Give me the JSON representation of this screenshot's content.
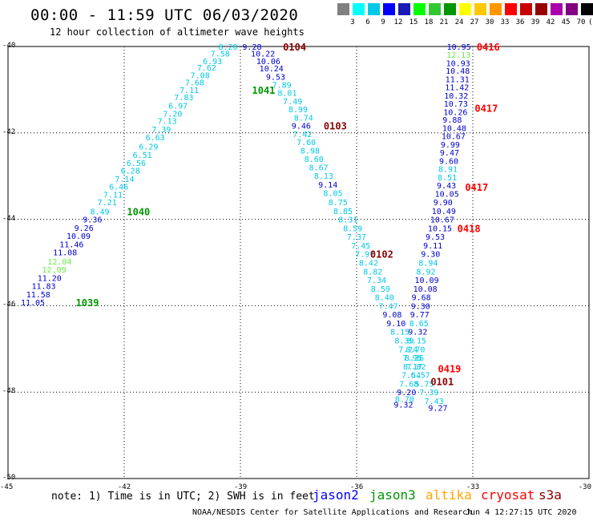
{
  "header": {
    "title": "00:00 - 11:59 UTC 06/03/2020",
    "subtitle": "12 hour collection of altimeter wave heights"
  },
  "scale": {
    "labels": [
      "3",
      "6",
      "9",
      "12",
      "15",
      "18",
      "21",
      "24",
      "27",
      "30",
      "33",
      "36",
      "39",
      "42",
      "45",
      "70",
      "(ft)"
    ],
    "colors": [
      "#808080",
      "#00ffff",
      "#00c8e6",
      "#0000ff",
      "#1a1ab4",
      "#00ff00",
      "#32c832",
      "#009600",
      "#ffff00",
      "#ffc800",
      "#ff9600",
      "#ff0000",
      "#c80000",
      "#960000",
      "#aa00aa",
      "#800080",
      "#000000"
    ]
  },
  "axes": {
    "y_labels": [
      "-40",
      "-42",
      "-44",
      "-46",
      "-48",
      "-50"
    ],
    "x_labels": [
      "-45",
      "-42",
      "-39",
      "-36",
      "-33",
      "-30"
    ]
  },
  "footer": {
    "note": "note: 1) Time is in UTC; 2) SWH is in feet",
    "legend": [
      {
        "name": "jason2",
        "color": "#0000ff"
      },
      {
        "name": "jason3",
        "color": "#009600"
      },
      {
        "name": "altika",
        "color": "#ffa500"
      },
      {
        "name": "cryosat",
        "color": "#ff0000"
      },
      {
        "name": "s3a",
        "color": "#8b0000"
      }
    ],
    "credit": "NOAA/NESDIS Center for Satellite Applications and Research",
    "stamp": "Jun  4 12:27:15 UTC 2020"
  },
  "chart_data": {
    "type": "scatter",
    "xlim": [
      -45,
      -30
    ],
    "ylim": [
      -50,
      -40
    ],
    "xlabel": "",
    "ylabel": "",
    "colors": {
      "cyan": "#00c8e6",
      "blue": "#0000cd",
      "lgreen": "#66ee44",
      "green": "#009600",
      "red": "#ff0000",
      "dred": "#8b0000"
    },
    "tracks": [
      {
        "id": "jason3-a",
        "color": "green",
        "points": [
          {
            "lon": -39.57,
            "lat": -40.0,
            "v": "8.20",
            "c": "cyan"
          },
          {
            "lon": -39.77,
            "lat": -40.16,
            "v": "7.58",
            "c": "cyan"
          },
          {
            "lon": -39.97,
            "lat": -40.33,
            "v": "6.93",
            "c": "cyan"
          },
          {
            "lon": -40.12,
            "lat": -40.48,
            "v": "7.62",
            "c": "cyan"
          },
          {
            "lon": -40.29,
            "lat": -40.66,
            "v": "7.08",
            "c": "cyan"
          },
          {
            "lon": -40.43,
            "lat": -40.83,
            "v": "7.68",
            "c": "cyan"
          },
          {
            "lon": -40.57,
            "lat": -41.0,
            "v": "7.11",
            "c": "cyan"
          },
          {
            "lon": -40.71,
            "lat": -41.17,
            "v": "7.83",
            "c": "cyan"
          },
          {
            "lon": -40.86,
            "lat": -41.36,
            "v": "6.97",
            "c": "cyan"
          },
          {
            "lon": -41.0,
            "lat": -41.55,
            "v": "7.20",
            "c": "cyan"
          },
          {
            "lon": -41.14,
            "lat": -41.72,
            "v": "7.13",
            "c": "cyan"
          },
          {
            "lon": -41.29,
            "lat": -41.91,
            "v": "7.39",
            "c": "cyan"
          },
          {
            "lon": -41.45,
            "lat": -42.1,
            "v": "6.63",
            "c": "cyan"
          },
          {
            "lon": -41.62,
            "lat": -42.31,
            "v": "6.29",
            "c": "cyan"
          },
          {
            "lon": -41.78,
            "lat": -42.5,
            "v": "6.51",
            "c": "cyan"
          },
          {
            "lon": -41.94,
            "lat": -42.69,
            "v": "6.56",
            "c": "cyan"
          },
          {
            "lon": -42.09,
            "lat": -42.87,
            "v": "6.28",
            "c": "cyan"
          },
          {
            "lon": -42.24,
            "lat": -43.06,
            "v": "7.14",
            "c": "cyan"
          },
          {
            "lon": -42.39,
            "lat": -43.24,
            "v": "6.46",
            "c": "cyan"
          },
          {
            "lon": -42.54,
            "lat": -43.42,
            "v": "7.11",
            "c": "cyan"
          },
          {
            "lon": -42.69,
            "lat": -43.6,
            "v": "7.21",
            "c": "cyan"
          },
          {
            "lon": -42.88,
            "lat": -43.81,
            "v": "8.49",
            "c": "cyan"
          },
          {
            "lon": -43.07,
            "lat": -44.0,
            "v": "9.36",
            "c": "blue"
          },
          {
            "lon": -43.29,
            "lat": -44.19,
            "v": "9.26",
            "c": "blue"
          },
          {
            "lon": -43.49,
            "lat": -44.38,
            "v": "10.09",
            "c": "blue"
          },
          {
            "lon": -43.67,
            "lat": -44.57,
            "v": "11.46",
            "c": "blue"
          },
          {
            "lon": -43.84,
            "lat": -44.76,
            "v": "11.08",
            "c": "blue"
          },
          {
            "lon": -43.98,
            "lat": -44.97,
            "v": "12.04",
            "c": "lgreen"
          },
          {
            "lon": -44.12,
            "lat": -45.16,
            "v": "12.09",
            "c": "lgreen"
          },
          {
            "lon": -44.24,
            "lat": -45.35,
            "v": "11.20",
            "c": "blue"
          },
          {
            "lon": -44.39,
            "lat": -45.54,
            "v": "11.83",
            "c": "blue"
          },
          {
            "lon": -44.53,
            "lat": -45.73,
            "v": "11.58",
            "c": "blue"
          },
          {
            "lon": -44.67,
            "lat": -45.92,
            "v": "11.05",
            "c": "blue"
          }
        ],
        "labels": [
          {
            "lon": -38.7,
            "lat": -41.0,
            "t": "1041"
          },
          {
            "lon": -41.93,
            "lat": -43.81,
            "t": "1040"
          },
          {
            "lon": -43.25,
            "lat": -45.92,
            "t": "1039"
          }
        ]
      },
      {
        "id": "s3a-a",
        "color": "dred",
        "points": [
          {
            "lon": -38.95,
            "lat": -40.0,
            "v": "9.28",
            "c": "blue"
          },
          {
            "lon": -38.73,
            "lat": -40.16,
            "v": "10.22",
            "c": "blue"
          },
          {
            "lon": -38.59,
            "lat": -40.33,
            "v": "10.06",
            "c": "blue"
          },
          {
            "lon": -38.51,
            "lat": -40.5,
            "v": "10.24",
            "c": "blue"
          },
          {
            "lon": -38.34,
            "lat": -40.7,
            "v": "9.53",
            "c": "blue"
          },
          {
            "lon": -38.18,
            "lat": -40.88,
            "v": "7.89",
            "c": "cyan"
          },
          {
            "lon": -38.04,
            "lat": -41.07,
            "v": "8.01",
            "c": "cyan"
          },
          {
            "lon": -37.9,
            "lat": -41.26,
            "v": "7.49",
            "c": "cyan"
          },
          {
            "lon": -37.76,
            "lat": -41.45,
            "v": "8.99",
            "c": "cyan"
          },
          {
            "lon": -37.62,
            "lat": -41.64,
            "v": "8.74",
            "c": "cyan"
          },
          {
            "lon": -37.68,
            "lat": -41.83,
            "v": "9.46",
            "c": "blue"
          },
          {
            "lon": -37.65,
            "lat": -42.02,
            "v": "7.42",
            "c": "cyan"
          },
          {
            "lon": -37.55,
            "lat": -42.21,
            "v": "7.60",
            "c": "cyan"
          },
          {
            "lon": -37.45,
            "lat": -42.4,
            "v": "8.98",
            "c": "cyan"
          },
          {
            "lon": -37.35,
            "lat": -42.6,
            "v": "8.60",
            "c": "cyan"
          },
          {
            "lon": -37.23,
            "lat": -42.79,
            "v": "8.67",
            "c": "cyan"
          },
          {
            "lon": -37.1,
            "lat": -42.99,
            "v": "8.13",
            "c": "cyan"
          },
          {
            "lon": -36.99,
            "lat": -43.19,
            "v": "9.14",
            "c": "blue"
          },
          {
            "lon": -36.86,
            "lat": -43.39,
            "v": "8.05",
            "c": "cyan"
          },
          {
            "lon": -36.73,
            "lat": -43.6,
            "v": "8.75",
            "c": "cyan"
          },
          {
            "lon": -36.6,
            "lat": -43.8,
            "v": "8.85",
            "c": "cyan"
          },
          {
            "lon": -36.47,
            "lat": -44.0,
            "v": "8.31",
            "c": "cyan"
          },
          {
            "lon": -36.35,
            "lat": -44.2,
            "v": "8.59",
            "c": "cyan"
          },
          {
            "lon": -36.25,
            "lat": -44.4,
            "v": "7.37",
            "c": "cyan"
          },
          {
            "lon": -36.14,
            "lat": -44.6,
            "v": "7.45",
            "c": "cyan"
          },
          {
            "lon": -36.04,
            "lat": -44.8,
            "v": "7.97",
            "c": "cyan"
          },
          {
            "lon": -35.94,
            "lat": -45.0,
            "v": "8.42",
            "c": "cyan"
          },
          {
            "lon": -35.83,
            "lat": -45.2,
            "v": "8.82",
            "c": "cyan"
          },
          {
            "lon": -35.73,
            "lat": -45.4,
            "v": "7.34",
            "c": "cyan"
          },
          {
            "lon": -35.63,
            "lat": -45.6,
            "v": "8.59",
            "c": "cyan"
          },
          {
            "lon": -35.53,
            "lat": -45.8,
            "v": "8.40",
            "c": "cyan"
          },
          {
            "lon": -35.43,
            "lat": -46.0,
            "v": "7.47",
            "c": "cyan"
          },
          {
            "lon": -35.33,
            "lat": -46.2,
            "v": "9.08",
            "c": "blue"
          },
          {
            "lon": -35.23,
            "lat": -46.4,
            "v": "9.10",
            "c": "blue"
          },
          {
            "lon": -35.13,
            "lat": -46.6,
            "v": "8.15",
            "c": "cyan"
          },
          {
            "lon": -35.02,
            "lat": -46.8,
            "v": "8.39",
            "c": "cyan"
          },
          {
            "lon": -34.92,
            "lat": -47.0,
            "v": "7.24",
            "c": "cyan"
          },
          {
            "lon": -34.81,
            "lat": -47.2,
            "v": "7.95",
            "c": "cyan"
          },
          {
            "lon": -34.71,
            "lat": -47.4,
            "v": "7.82",
            "c": "cyan"
          },
          {
            "lon": -34.6,
            "lat": -47.6,
            "v": "6.57",
            "c": "cyan"
          },
          {
            "lon": -34.5,
            "lat": -47.8,
            "v": "5.75",
            "c": "cyan"
          },
          {
            "lon": -34.38,
            "lat": -48.0,
            "v": "7.39",
            "c": "cyan"
          },
          {
            "lon": -34.25,
            "lat": -48.2,
            "v": "7.43",
            "c": "cyan"
          },
          {
            "lon": -34.15,
            "lat": -48.36,
            "v": "9.27",
            "c": "blue"
          }
        ],
        "labels": [
          {
            "lon": -37.9,
            "lat": -40.0,
            "t": "0104"
          },
          {
            "lon": -36.85,
            "lat": -41.83,
            "t": "0103"
          },
          {
            "lon": -35.65,
            "lat": -44.8,
            "t": "0102"
          },
          {
            "lon": -34.09,
            "lat": -47.75,
            "t": "0101"
          }
        ]
      },
      {
        "id": "cryosat-a",
        "color": "red",
        "points": [
          {
            "lon": -33.67,
            "lat": -40.0,
            "v": "10.95",
            "c": "blue"
          },
          {
            "lon": -33.68,
            "lat": -40.19,
            "v": "12.13",
            "c": "lgreen"
          },
          {
            "lon": -33.69,
            "lat": -40.38,
            "v": "10.93",
            "c": "blue"
          },
          {
            "lon": -33.7,
            "lat": -40.56,
            "v": "10.48",
            "c": "blue"
          },
          {
            "lon": -33.71,
            "lat": -40.75,
            "v": "11.31",
            "c": "blue"
          },
          {
            "lon": -33.72,
            "lat": -40.94,
            "v": "11.42",
            "c": "blue"
          },
          {
            "lon": -33.74,
            "lat": -41.13,
            "v": "10.32",
            "c": "blue"
          },
          {
            "lon": -33.75,
            "lat": -41.32,
            "v": "10.73",
            "c": "blue"
          },
          {
            "lon": -33.76,
            "lat": -41.51,
            "v": "10.26",
            "c": "blue"
          },
          {
            "lon": -33.78,
            "lat": -41.69,
            "v": "9.88",
            "c": "blue"
          },
          {
            "lon": -33.79,
            "lat": -41.88,
            "v": "10.48",
            "c": "blue"
          },
          {
            "lon": -33.81,
            "lat": -42.07,
            "v": "10.67",
            "c": "blue"
          },
          {
            "lon": -33.83,
            "lat": -42.26,
            "v": "9.99",
            "c": "blue"
          },
          {
            "lon": -33.85,
            "lat": -42.45,
            "v": "9.47",
            "c": "blue"
          },
          {
            "lon": -33.87,
            "lat": -42.64,
            "v": "9.60",
            "c": "blue"
          },
          {
            "lon": -33.89,
            "lat": -42.83,
            "v": "8.91",
            "c": "cyan"
          },
          {
            "lon": -33.91,
            "lat": -43.02,
            "v": "8.51",
            "c": "cyan"
          },
          {
            "lon": -33.93,
            "lat": -43.21,
            "v": "9.43",
            "c": "blue"
          },
          {
            "lon": -33.98,
            "lat": -43.4,
            "v": "10.05",
            "c": "blue"
          },
          {
            "lon": -34.02,
            "lat": -43.6,
            "v": "9.90",
            "c": "blue"
          },
          {
            "lon": -34.06,
            "lat": -43.8,
            "v": "10.49",
            "c": "blue"
          },
          {
            "lon": -34.1,
            "lat": -44.0,
            "v": "10.67",
            "c": "blue"
          },
          {
            "lon": -34.16,
            "lat": -44.2,
            "v": "10.15",
            "c": "blue"
          },
          {
            "lon": -34.22,
            "lat": -44.4,
            "v": "9.53",
            "c": "blue"
          },
          {
            "lon": -34.28,
            "lat": -44.6,
            "v": "9.11",
            "c": "blue"
          },
          {
            "lon": -34.34,
            "lat": -44.8,
            "v": "9.30",
            "c": "blue"
          },
          {
            "lon": -34.4,
            "lat": -45.0,
            "v": "8.94",
            "c": "cyan"
          },
          {
            "lon": -34.46,
            "lat": -45.2,
            "v": "8.92",
            "c": "cyan"
          },
          {
            "lon": -34.5,
            "lat": -45.4,
            "v": "10.09",
            "c": "blue"
          },
          {
            "lon": -34.54,
            "lat": -45.6,
            "v": "10.08",
            "c": "blue"
          },
          {
            "lon": -34.58,
            "lat": -45.8,
            "v": "9.68",
            "c": "blue"
          },
          {
            "lon": -34.6,
            "lat": -46.0,
            "v": "9.30",
            "c": "blue"
          },
          {
            "lon": -34.62,
            "lat": -46.2,
            "v": "9.77",
            "c": "blue"
          },
          {
            "lon": -34.64,
            "lat": -46.4,
            "v": "8.65",
            "c": "cyan"
          },
          {
            "lon": -34.67,
            "lat": -46.6,
            "v": "9.32",
            "c": "blue"
          },
          {
            "lon": -34.7,
            "lat": -46.8,
            "v": "8.15",
            "c": "cyan"
          },
          {
            "lon": -34.73,
            "lat": -47.0,
            "v": "8.70",
            "c": "cyan"
          },
          {
            "lon": -34.76,
            "lat": -47.2,
            "v": "8.36",
            "c": "cyan"
          },
          {
            "lon": -34.8,
            "lat": -47.4,
            "v": "8.17",
            "c": "cyan"
          },
          {
            "lon": -34.84,
            "lat": -47.6,
            "v": "7.54",
            "c": "cyan"
          },
          {
            "lon": -34.9,
            "lat": -47.8,
            "v": "7.68",
            "c": "cyan"
          },
          {
            "lon": -34.96,
            "lat": -48.0,
            "v": "9.20",
            "c": "blue"
          },
          {
            "lon": -35.01,
            "lat": -48.15,
            "v": "8.70",
            "c": "cyan"
          },
          {
            "lon": -35.04,
            "lat": -48.28,
            "v": "9.32",
            "c": "blue"
          }
        ],
        "labels": [
          {
            "lon": -32.9,
            "lat": -40.0,
            "t": "0416"
          },
          {
            "lon": -32.95,
            "lat": -41.42,
            "t": "0417"
          },
          {
            "lon": -33.2,
            "lat": -43.25,
            "t": "0417"
          },
          {
            "lon": -33.4,
            "lat": -44.2,
            "t": "0418"
          },
          {
            "lon": -33.9,
            "lat": -47.45,
            "t": "0419"
          }
        ]
      }
    ]
  }
}
